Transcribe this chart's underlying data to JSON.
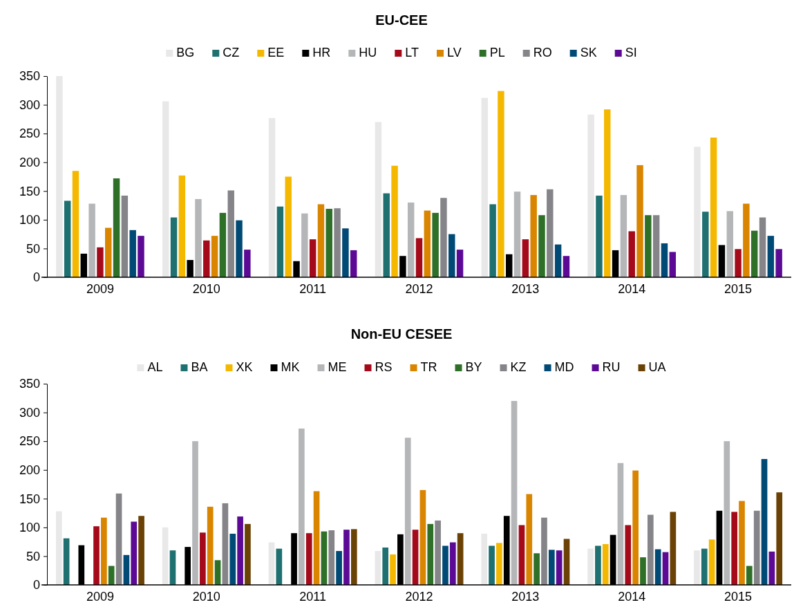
{
  "chart_data": [
    {
      "type": "bar",
      "title": "EU-CEE",
      "categories": [
        "2009",
        "2010",
        "2011",
        "2012",
        "2013",
        "2014",
        "2015"
      ],
      "ylim": [
        0,
        350
      ],
      "yticks": [
        0,
        50,
        100,
        150,
        200,
        250,
        300,
        350
      ],
      "grid": false,
      "legend": "top",
      "series": [
        {
          "name": "BG",
          "color": "#e8e8e9",
          "values": [
            350,
            306,
            277,
            270,
            312,
            283,
            227
          ]
        },
        {
          "name": "CZ",
          "color": "#1f7070",
          "values": [
            133,
            104,
            123,
            146,
            127,
            142,
            114
          ]
        },
        {
          "name": "EE",
          "color": "#f5b800",
          "values": [
            185,
            177,
            175,
            194,
            324,
            292,
            243
          ]
        },
        {
          "name": "HR",
          "color": "#000000",
          "values": [
            41,
            30,
            28,
            37,
            40,
            47,
            56
          ]
        },
        {
          "name": "HU",
          "color": "#b5b6b8",
          "values": [
            128,
            136,
            111,
            130,
            149,
            143,
            115
          ]
        },
        {
          "name": "LT",
          "color": "#a50a1a",
          "values": [
            52,
            64,
            66,
            68,
            66,
            80,
            49
          ]
        },
        {
          "name": "LV",
          "color": "#d98500",
          "values": [
            86,
            72,
            127,
            116,
            143,
            195,
            128
          ]
        },
        {
          "name": "PL",
          "color": "#2e7028",
          "values": [
            172,
            112,
            119,
            112,
            108,
            108,
            81
          ]
        },
        {
          "name": "RO",
          "color": "#858589",
          "values": [
            142,
            151,
            120,
            138,
            153,
            108,
            104
          ]
        },
        {
          "name": "SK",
          "color": "#004a75",
          "values": [
            82,
            99,
            85,
            75,
            57,
            59,
            72
          ]
        },
        {
          "name": "SI",
          "color": "#5c0a96",
          "values": [
            72,
            48,
            47,
            48,
            37,
            44,
            49
          ]
        }
      ]
    },
    {
      "type": "bar",
      "title": "Non-EU CESEE",
      "categories": [
        "2009",
        "2010",
        "2011",
        "2012",
        "2013",
        "2014",
        "2015"
      ],
      "ylim": [
        0,
        350
      ],
      "yticks": [
        0,
        50,
        100,
        150,
        200,
        250,
        300,
        350
      ],
      "grid": false,
      "legend": "top",
      "series": [
        {
          "name": "AL",
          "color": "#e8e8e9",
          "values": [
            128,
            100,
            74,
            59,
            89,
            63,
            60
          ]
        },
        {
          "name": "BA",
          "color": "#1f7070",
          "values": [
            81,
            60,
            63,
            65,
            68,
            68,
            63
          ]
        },
        {
          "name": "XK",
          "color": "#f5b800",
          "values": [
            null,
            null,
            null,
            53,
            73,
            71,
            79
          ]
        },
        {
          "name": "MK",
          "color": "#000000",
          "values": [
            69,
            66,
            90,
            88,
            120,
            87,
            129
          ]
        },
        {
          "name": "ME",
          "color": "#b5b6b8",
          "values": [
            null,
            250,
            272,
            256,
            320,
            212,
            250
          ]
        },
        {
          "name": "RS",
          "color": "#a50a1a",
          "values": [
            102,
            91,
            90,
            96,
            104,
            104,
            127
          ]
        },
        {
          "name": "TR",
          "color": "#d98500",
          "values": [
            117,
            136,
            163,
            165,
            158,
            199,
            146
          ]
        },
        {
          "name": "BY",
          "color": "#2e7028",
          "values": [
            33,
            43,
            93,
            106,
            55,
            48,
            33
          ]
        },
        {
          "name": "KZ",
          "color": "#858589",
          "values": [
            159,
            142,
            95,
            112,
            117,
            122,
            129
          ]
        },
        {
          "name": "MD",
          "color": "#004a75",
          "values": [
            52,
            89,
            59,
            68,
            61,
            62,
            219
          ]
        },
        {
          "name": "RU",
          "color": "#5c0a96",
          "values": [
            110,
            119,
            96,
            74,
            60,
            57,
            58
          ]
        },
        {
          "name": "UA",
          "color": "#6b4205",
          "values": [
            120,
            106,
            97,
            90,
            80,
            127,
            161
          ]
        }
      ]
    }
  ]
}
